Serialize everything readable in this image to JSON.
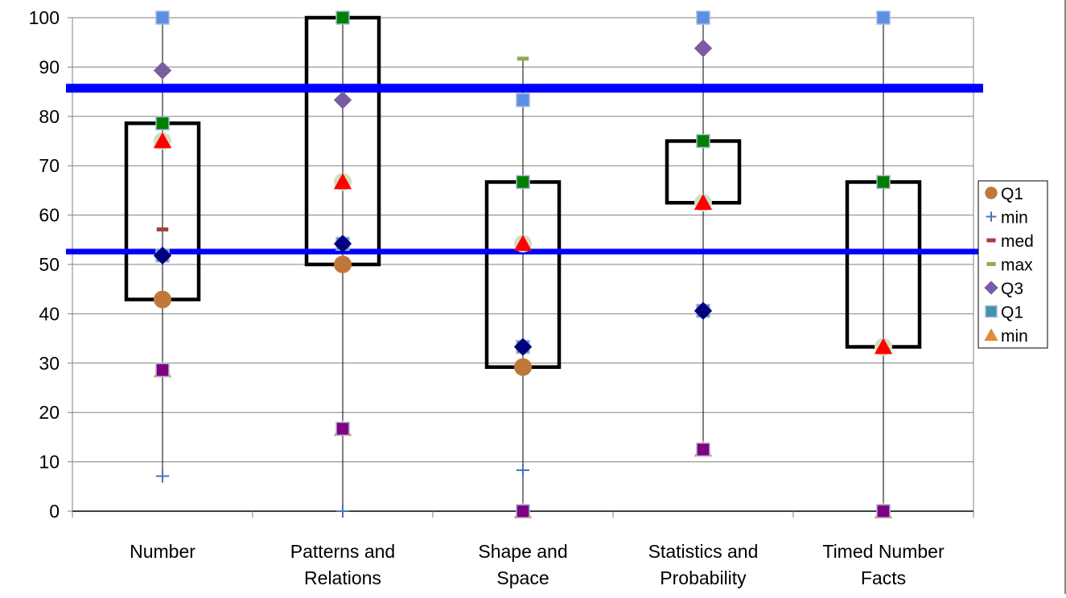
{
  "chart_data": {
    "type": "box",
    "title": "",
    "xlabel": "",
    "ylabel": "",
    "ylim": [
      0,
      100
    ],
    "yticks": [
      0,
      10,
      20,
      30,
      40,
      50,
      60,
      70,
      80,
      90,
      100
    ],
    "grid": true,
    "legend_position": "right",
    "categories": [
      "Number",
      "Patterns and Relations",
      "Shape and Space",
      "Statistics and Probability",
      "Timed Number Facts"
    ],
    "category_lines": [
      [
        "Number"
      ],
      [
        "Patterns and",
        "Relations"
      ],
      [
        "Shape and",
        "Space"
      ],
      [
        "Statistics and",
        "Probability"
      ],
      [
        "Timed Number",
        "Facts"
      ]
    ],
    "boxes": [
      {
        "q1": 42.9,
        "q3": 78.6,
        "whisker_low": 7.1,
        "whisker_high": 100
      },
      {
        "q1": 50,
        "q3": 100,
        "whisker_low": 0,
        "whisker_high": 100
      },
      {
        "q1": 29.2,
        "q3": 66.7,
        "whisker_low": 0,
        "whisker_high": 91.7
      },
      {
        "q1": 62.5,
        "q3": 75,
        "whisker_low": 12.5,
        "whisker_high": 100
      },
      {
        "q1": 33.3,
        "q3": 66.7,
        "whisker_low": 0,
        "whisker_high": 100
      }
    ],
    "reference_lines": [
      {
        "value": 85.7,
        "color": "#0000ff",
        "weight": "thick"
      },
      {
        "value": 52.6,
        "color": "#0000ff",
        "weight": "medium"
      }
    ],
    "series": [
      {
        "name": "Q1",
        "marker": "circle",
        "color": "#c0783a",
        "values": [
          42.9,
          50,
          29.2,
          null,
          null
        ]
      },
      {
        "name": "min",
        "marker": "plus",
        "color": "#4a74b5",
        "values": [
          7.1,
          0,
          8.3,
          null,
          null
        ]
      },
      {
        "name": "med",
        "marker": "dash",
        "color": "#a5403c",
        "values": [
          57.1,
          null,
          null,
          null,
          null
        ]
      },
      {
        "name": "max",
        "marker": "dash",
        "color": "#8cae4f",
        "values": [
          null,
          null,
          91.7,
          null,
          null
        ]
      },
      {
        "name": "Q3",
        "marker": "diamond",
        "color": "#7a5ca0",
        "values": [
          89.3,
          83.3,
          null,
          93.8,
          null
        ]
      },
      {
        "name": "Q1",
        "marker": "square",
        "color": "#3d95ab",
        "values": [
          51.8,
          54.2,
          33.3,
          40.6,
          0
        ]
      },
      {
        "name": "min",
        "marker": "triangle",
        "color": "#e48a37",
        "values": [
          28.6,
          16.7,
          0,
          12.5,
          0
        ]
      },
      {
        "name": "",
        "marker": "circle",
        "color": "#cfe0c4",
        "values": [
          75,
          66.7,
          54.2,
          62.5,
          33.3
        ]
      },
      {
        "name": "",
        "marker": "square",
        "color": "#5b8fe4",
        "values": [
          100,
          null,
          83.3,
          100,
          100
        ]
      },
      {
        "name": "",
        "marker": "square",
        "color": "#008000",
        "values": [
          78.6,
          100,
          66.7,
          75,
          66.7
        ]
      },
      {
        "name": "",
        "marker": "diamond",
        "color": "#000080",
        "values": [
          51.8,
          54.2,
          33.3,
          40.6,
          null
        ]
      },
      {
        "name": "",
        "marker": "square",
        "color": "#800080",
        "values": [
          28.6,
          16.7,
          0,
          12.5,
          0
        ]
      },
      {
        "name": "",
        "marker": "triangle",
        "color": "#ff0000",
        "values": [
          75,
          66.7,
          54.2,
          62.5,
          33.3
        ]
      }
    ],
    "legend": [
      {
        "label": "Q1",
        "marker": "circle",
        "color": "#c0783a"
      },
      {
        "label": "min",
        "marker": "plus",
        "color": "#4a74b5"
      },
      {
        "label": "med",
        "marker": "dash",
        "color": "#a5403c"
      },
      {
        "label": "max",
        "marker": "dash",
        "color": "#8cae4f"
      },
      {
        "label": "Q3",
        "marker": "diamond",
        "color": "#7a5ca0"
      },
      {
        "label": "Q1",
        "marker": "square",
        "color": "#3d95ab"
      },
      {
        "label": "min",
        "marker": "triangle",
        "color": "#e48a37"
      }
    ]
  }
}
